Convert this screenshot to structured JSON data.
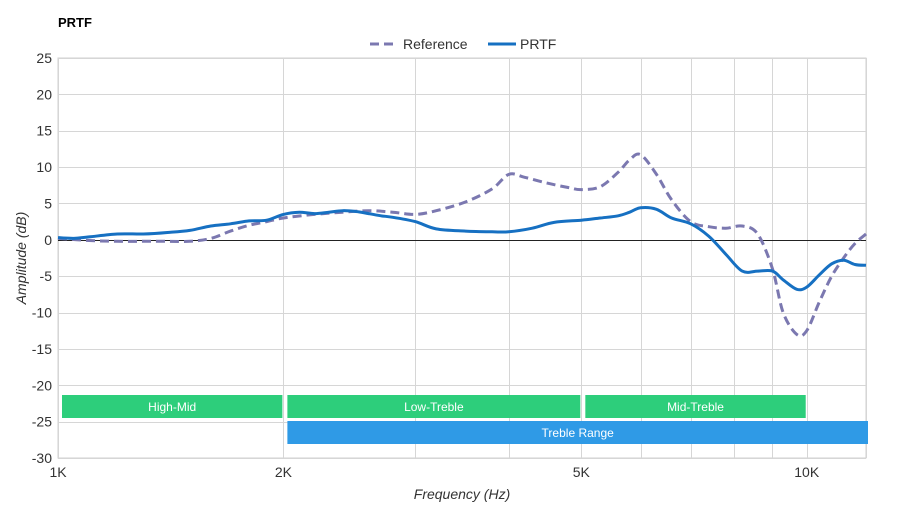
{
  "chart_data": {
    "type": "line",
    "title": "PRTF",
    "xlabel": "Frequency (Hz)",
    "ylabel": "Amplitude (dB)",
    "x_scale": "log",
    "xlim": [
      1000,
      12000
    ],
    "ylim": [
      -30,
      25
    ],
    "y_ticks": [
      25,
      20,
      15,
      10,
      5,
      0,
      -5,
      -10,
      -15,
      -20,
      -25,
      -30
    ],
    "x_tick_labels": [
      {
        "value": 1000,
        "label": "1K"
      },
      {
        "value": 2000,
        "label": "2K"
      },
      {
        "value": 5000,
        "label": "5K"
      },
      {
        "value": 10000,
        "label": "10K"
      }
    ],
    "x_gridlines": [
      1000,
      2000,
      3000,
      4000,
      5000,
      6000,
      7000,
      8000,
      9000,
      10000,
      12000
    ],
    "grid": true,
    "legend_position": "top-center",
    "series": [
      {
        "name": "Reference",
        "color": "#7b78b0",
        "dash": true,
        "x": [
          1000,
          1100,
          1200,
          1300,
          1400,
          1500,
          1600,
          1700,
          1800,
          1900,
          2000,
          2200,
          2400,
          2600,
          2800,
          3000,
          3200,
          3500,
          3800,
          4000,
          4200,
          4500,
          4800,
          5000,
          5300,
          5600,
          5800,
          6000,
          6300,
          6600,
          7000,
          7400,
          7800,
          8200,
          8600,
          9000,
          9300,
          9700,
          10000,
          10400,
          10800,
          11200,
          11600,
          12000
        ],
        "y": [
          0.2,
          -0.1,
          -0.2,
          -0.2,
          -0.2,
          -0.2,
          0.2,
          1.2,
          2.0,
          2.5,
          3.0,
          3.5,
          3.8,
          4.0,
          3.8,
          3.5,
          4.0,
          5.2,
          7.0,
          9.0,
          8.6,
          7.8,
          7.2,
          6.9,
          7.3,
          9.3,
          11.0,
          11.7,
          9.0,
          5.5,
          2.5,
          1.8,
          1.6,
          1.9,
          0.8,
          -4.0,
          -10.0,
          -13.0,
          -12.5,
          -8.5,
          -5.0,
          -2.5,
          -0.5,
          0.8
        ]
      },
      {
        "name": "PRTF",
        "color": "#1670c2",
        "dash": false,
        "x": [
          1000,
          1050,
          1100,
          1200,
          1300,
          1400,
          1500,
          1600,
          1700,
          1800,
          1900,
          2000,
          2100,
          2200,
          2300,
          2400,
          2500,
          2600,
          2700,
          2800,
          3000,
          3200,
          3500,
          3800,
          4000,
          4300,
          4600,
          5000,
          5300,
          5600,
          5800,
          6000,
          6300,
          6600,
          7000,
          7400,
          7800,
          8200,
          8600,
          9000,
          9300,
          9700,
          10000,
          10400,
          10800,
          11200,
          11600,
          12000
        ],
        "y": [
          0.3,
          0.2,
          0.4,
          0.8,
          0.8,
          1.0,
          1.3,
          1.9,
          2.2,
          2.6,
          2.7,
          3.5,
          3.8,
          3.6,
          3.8,
          4.0,
          3.9,
          3.6,
          3.3,
          3.1,
          2.5,
          1.5,
          1.2,
          1.1,
          1.1,
          1.6,
          2.4,
          2.7,
          3.0,
          3.3,
          3.8,
          4.4,
          4.2,
          3.0,
          2.2,
          0.5,
          -2.0,
          -4.3,
          -4.3,
          -4.3,
          -5.5,
          -6.8,
          -6.5,
          -4.8,
          -3.3,
          -2.8,
          -3.4,
          -3.5
        ]
      }
    ],
    "range_bands": [
      {
        "label": "High-Mid",
        "x_start": 1000,
        "x_end": 2000,
        "row": 0,
        "color": "#2dce7b"
      },
      {
        "label": "Low-Treble",
        "x_start": 2000,
        "x_end": 5000,
        "row": 0,
        "color": "#2dce7b"
      },
      {
        "label": "Mid-Treble",
        "x_start": 5000,
        "x_end": 10000,
        "row": 0,
        "color": "#2dce7b"
      },
      {
        "label": "Treble Range",
        "x_start": 2000,
        "x_end": 12000,
        "row": 1,
        "color": "#2f9ae6"
      }
    ]
  }
}
